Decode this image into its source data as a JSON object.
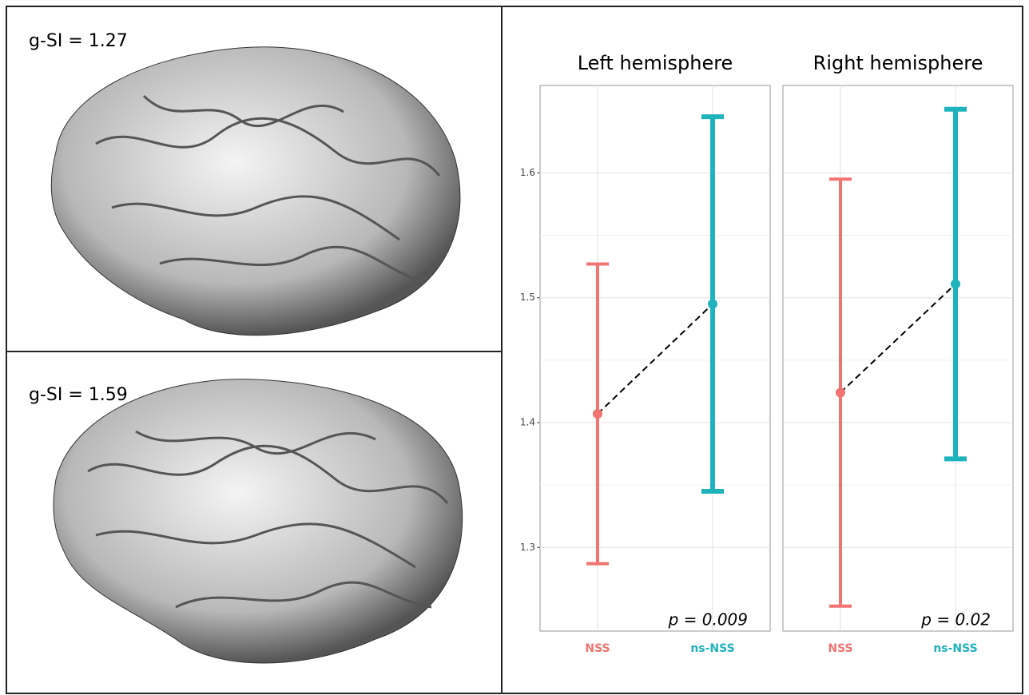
{
  "panels": [
    {
      "label": "g-SI = 1.27"
    },
    {
      "label": "g-SI = 1.59"
    }
  ],
  "chart_data": [
    {
      "type": "errorbar",
      "title": "Left hemisphere",
      "categories": [
        "NSS",
        "ns-NSS"
      ],
      "values": [
        1.407,
        1.495
      ],
      "errors": [
        0.12,
        0.15
      ],
      "colors": [
        "#f07470",
        "#1fb3bd"
      ],
      "ylim": [
        1.233,
        1.67
      ],
      "yticks": [
        1.3,
        1.4,
        1.5,
        1.6
      ],
      "grid": true,
      "annotation": "p = 0.009"
    },
    {
      "type": "errorbar",
      "title": "Right hemisphere",
      "categories": [
        "NSS",
        "ns-NSS"
      ],
      "values": [
        1.424,
        1.511
      ],
      "errors": [
        0.171,
        0.14
      ],
      "colors": [
        "#f07470",
        "#1fb3bd"
      ],
      "ylim": [
        1.233,
        1.67
      ],
      "grid": true,
      "annotation": "p = 0.02"
    }
  ]
}
